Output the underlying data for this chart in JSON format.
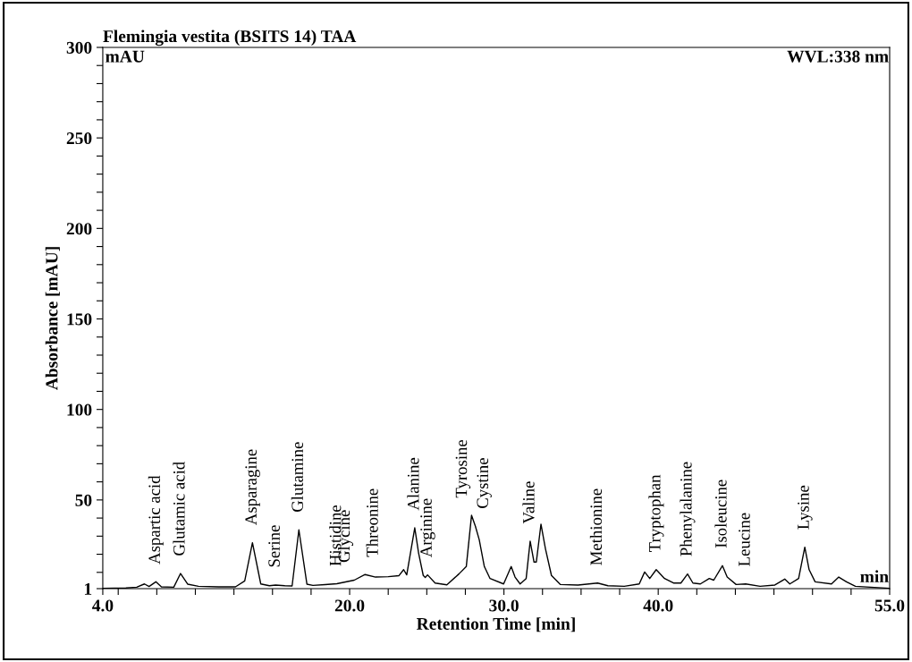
{
  "chart_data": {
    "type": "line",
    "title": "Flemingia vestita (BSITS 14) TAA",
    "subtitle": "WVL:338 nm",
    "xlabel": "Retention Time [min]",
    "ylabel": "Absorbance [mAU]",
    "xlim": [
      4.0,
      55.0
    ],
    "ylim": [
      1,
      300
    ],
    "xticks": [
      {
        "value": 4.0,
        "label": "4.0"
      },
      {
        "value": 5.0,
        "label": null
      },
      {
        "value": 7.5,
        "label": null
      },
      {
        "value": 10.0,
        "label": null
      },
      {
        "value": 12.5,
        "label": null
      },
      {
        "value": 15.0,
        "label": null
      },
      {
        "value": 17.5,
        "label": null
      },
      {
        "value": 20.0,
        "label": "20.0"
      },
      {
        "value": 22.5,
        "label": null
      },
      {
        "value": 25.0,
        "label": null
      },
      {
        "value": 27.5,
        "label": null
      },
      {
        "value": 30.0,
        "label": "30.0"
      },
      {
        "value": 32.5,
        "label": null
      },
      {
        "value": 35.0,
        "label": null
      },
      {
        "value": 37.5,
        "label": null
      },
      {
        "value": 40.0,
        "label": "40.0"
      },
      {
        "value": 42.5,
        "label": null
      },
      {
        "value": 45.0,
        "label": null
      },
      {
        "value": 47.5,
        "label": null
      },
      {
        "value": 50.0,
        "label": null
      },
      {
        "value": 52.5,
        "label": null
      },
      {
        "value": 55.0,
        "label": "55.0"
      }
    ],
    "yticks": [
      1,
      {
        "value": 10,
        "label": null
      },
      {
        "value": 20,
        "label": null
      },
      {
        "value": 30,
        "label": null
      },
      {
        "value": 40,
        "label": null
      },
      50,
      {
        "value": 60,
        "label": null
      },
      {
        "value": 70,
        "label": null
      },
      {
        "value": 80,
        "label": null
      },
      {
        "value": 90,
        "label": null
      },
      100,
      {
        "value": 110,
        "label": null
      },
      {
        "value": 120,
        "label": null
      },
      {
        "value": 130,
        "label": null
      },
      {
        "value": 140,
        "label": null
      },
      150,
      {
        "value": 160,
        "label": null
      },
      {
        "value": 170,
        "label": null
      },
      {
        "value": 180,
        "label": null
      },
      {
        "value": 190,
        "label": null
      },
      200,
      {
        "value": 210,
        "label": null
      },
      {
        "value": 220,
        "label": null
      },
      {
        "value": 230,
        "label": null
      },
      {
        "value": 240,
        "label": null
      },
      250,
      {
        "value": 260,
        "label": null
      },
      {
        "value": 270,
        "label": null
      },
      {
        "value": 280,
        "label": null
      },
      {
        "value": 290,
        "label": null
      },
      300
    ],
    "grid": false,
    "legend": false,
    "marker": "none",
    "line_style": "solid",
    "series": [
      {
        "color": "#000000",
        "x": [
          4.0,
          5.5,
          6.2,
          6.7,
          7.0,
          7.44,
          7.8,
          8.6,
          9.04,
          9.5,
          10.2,
          11.5,
          12.6,
          13.2,
          13.7,
          14.24,
          14.8,
          15.2,
          15.8,
          16.27,
          16.71,
          17.23,
          17.62,
          18.4,
          19.17,
          20.3,
          21.0,
          21.68,
          22.5,
          23.2,
          23.5,
          23.7,
          24.22,
          24.47,
          24.77,
          24.9,
          25.05,
          25.54,
          26.3,
          27.08,
          27.56,
          27.9,
          28.15,
          28.4,
          28.73,
          29.1,
          29.98,
          30.47,
          30.72,
          31.05,
          31.44,
          31.7,
          31.95,
          32.1,
          32.4,
          32.69,
          33.08,
          33.65,
          34.8,
          36.07,
          36.74,
          37.8,
          38.77,
          39.12,
          39.45,
          39.87,
          40.41,
          40.99,
          41.47,
          41.9,
          42.25,
          42.73,
          43.31,
          43.6,
          44.16,
          44.47,
          45.05,
          45.67,
          46.6,
          47.56,
          48.2,
          48.53,
          49.1,
          49.5,
          49.78,
          50.17,
          51.23,
          51.7,
          52.2,
          52.78,
          55.0
        ],
        "values": [
          1.2,
          1.4,
          1.8,
          3.6,
          2.2,
          4.8,
          2.0,
          1.8,
          9.4,
          3.5,
          2.3,
          2.0,
          2.0,
          5.3,
          26.4,
          3.6,
          2.6,
          3.0,
          2.6,
          2.5,
          33.5,
          3.5,
          2.8,
          3.2,
          3.7,
          5.7,
          8.8,
          7.4,
          7.6,
          8.2,
          11.5,
          8.6,
          34.6,
          20.6,
          8.3,
          7.2,
          8.6,
          4.1,
          3.1,
          9.1,
          13.2,
          41.5,
          35.5,
          28.0,
          13.2,
          6.6,
          3.6,
          13.2,
          7.4,
          3.6,
          6.6,
          27.2,
          15.7,
          15.7,
          36.6,
          23.1,
          8.3,
          3.3,
          3.0,
          4.1,
          2.6,
          2.3,
          3.6,
          10.2,
          6.6,
          11.5,
          6.6,
          4.1,
          4.1,
          9.1,
          4.1,
          3.6,
          6.6,
          5.7,
          13.7,
          7.4,
          3.3,
          3.6,
          2.3,
          3.0,
          6.3,
          3.6,
          6.6,
          23.9,
          11.5,
          4.8,
          3.6,
          7.4,
          4.8,
          2.3,
          1.2
        ]
      }
    ],
    "annotations": [
      "mAU",
      "min",
      {
        "text": "Aspartic acid",
        "x": 7.44,
        "y": 4.8
      },
      {
        "text": "Glutamic acid",
        "x": 9.04,
        "y": 9.4
      },
      {
        "text": "Asparagine",
        "x": 13.7,
        "y": 26.4
      },
      {
        "text": "Serine",
        "x": 15.2,
        "y": 3.0
      },
      {
        "text": "Glutamine",
        "x": 16.71,
        "y": 33.5
      },
      {
        "text": "Histidine",
        "x": 19.17,
        "y": 3.7
      },
      {
        "text": "Glycine",
        "x": 20.3,
        "y": 5.7
      },
      {
        "text": "Threonine",
        "x": 21.0,
        "y": 8.8
      },
      {
        "text": "Alanine",
        "x": 24.22,
        "y": 34.6
      },
      {
        "text": "Arginine",
        "x": 25.05,
        "y": 8.6
      },
      {
        "text": "Tyrosine",
        "x": 27.9,
        "y": 41.5
      },
      {
        "text": "Cystine",
        "x": 28.15,
        "y": 35.5
      },
      {
        "text": "Valine",
        "x": 31.7,
        "y": 27.2
      },
      {
        "text": "Methionine",
        "x": 36.07,
        "y": 4.1
      },
      {
        "text": "Tryptophan",
        "x": 39.87,
        "y": 11.5
      },
      {
        "text": "Phenylalanine",
        "x": 41.9,
        "y": 9.1
      },
      {
        "text": "Isoleucine",
        "x": 44.16,
        "y": 13.7
      },
      {
        "text": "Leucine",
        "x": 45.67,
        "y": 3.6
      },
      {
        "text": "Lysine",
        "x": 49.5,
        "y": 23.9
      }
    ]
  }
}
